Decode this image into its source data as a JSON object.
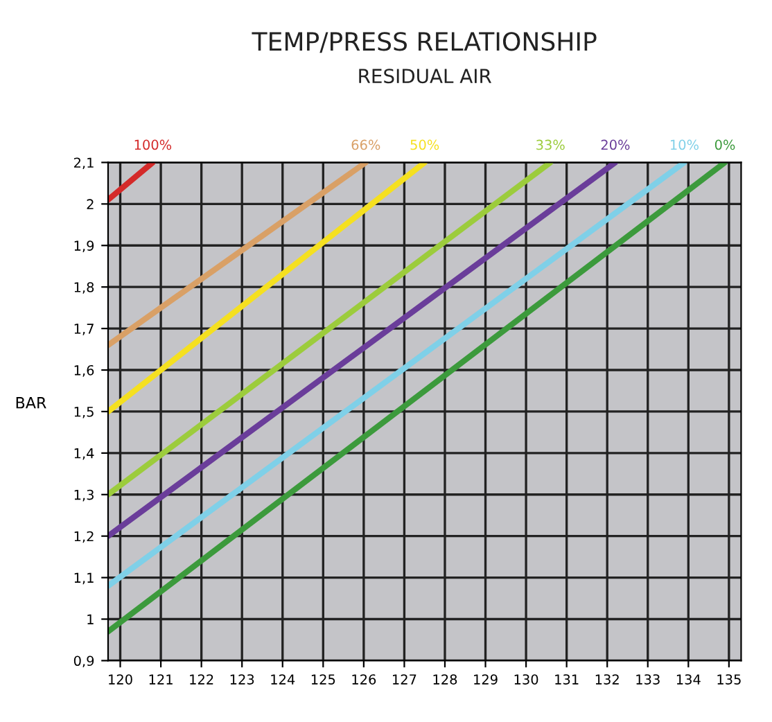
{
  "chart_data": {
    "type": "line",
    "title": "TEMP/PRESS RELATIONSHIP",
    "subtitle": "RESIDUAL AIR",
    "ylabel": "BAR",
    "xlim": [
      119.7,
      135.3
    ],
    "ylim": [
      0.9,
      2.1
    ],
    "xticks": [
      120,
      121,
      122,
      123,
      124,
      125,
      126,
      127,
      128,
      129,
      130,
      131,
      132,
      133,
      134,
      135
    ],
    "yticks": [
      {
        "value": 0.9,
        "label": "0,9"
      },
      1,
      {
        "value": 1.1,
        "label": "1,1"
      },
      {
        "value": 1.2,
        "label": "1,2"
      },
      {
        "value": 1.3,
        "label": "1,3"
      },
      {
        "value": 1.4,
        "label": "1,4"
      },
      {
        "value": 1.5,
        "label": "1,5"
      },
      {
        "value": 1.6,
        "label": "1,6"
      },
      {
        "value": 1.7,
        "label": "1,7"
      },
      {
        "value": 1.8,
        "label": "1,8"
      },
      {
        "value": 1.9,
        "label": "1,9"
      },
      2,
      {
        "value": 2.1,
        "label": "2,1"
      }
    ],
    "grid": true,
    "marker": "none",
    "line_style": "solid",
    "series": [
      {
        "name": "100%",
        "color": "#d42a2a",
        "x": [
          119.7,
          120.8
        ],
        "values": [
          2.01,
          2.1
        ]
      },
      {
        "name": "66%",
        "color": "#d9a066",
        "x": [
          119.7,
          126.05
        ],
        "values": [
          1.66,
          2.1
        ]
      },
      {
        "name": "50%",
        "color": "#f5e020",
        "x": [
          119.7,
          127.5
        ],
        "values": [
          1.5,
          2.1
        ]
      },
      {
        "name": "33%",
        "color": "#9ccc3c",
        "x": [
          119.7,
          130.6
        ],
        "values": [
          1.3,
          2.1
        ]
      },
      {
        "name": "20%",
        "color": "#6a3d9a",
        "x": [
          119.7,
          132.2
        ],
        "values": [
          1.2,
          2.1
        ]
      },
      {
        "name": "10%",
        "color": "#7fd0e8",
        "x": [
          119.7,
          133.9
        ],
        "values": [
          1.08,
          2.1
        ]
      },
      {
        "name": "0%",
        "color": "#3c9a3c",
        "x": [
          119.7,
          134.9
        ],
        "values": [
          0.97,
          2.1
        ]
      }
    ]
  }
}
